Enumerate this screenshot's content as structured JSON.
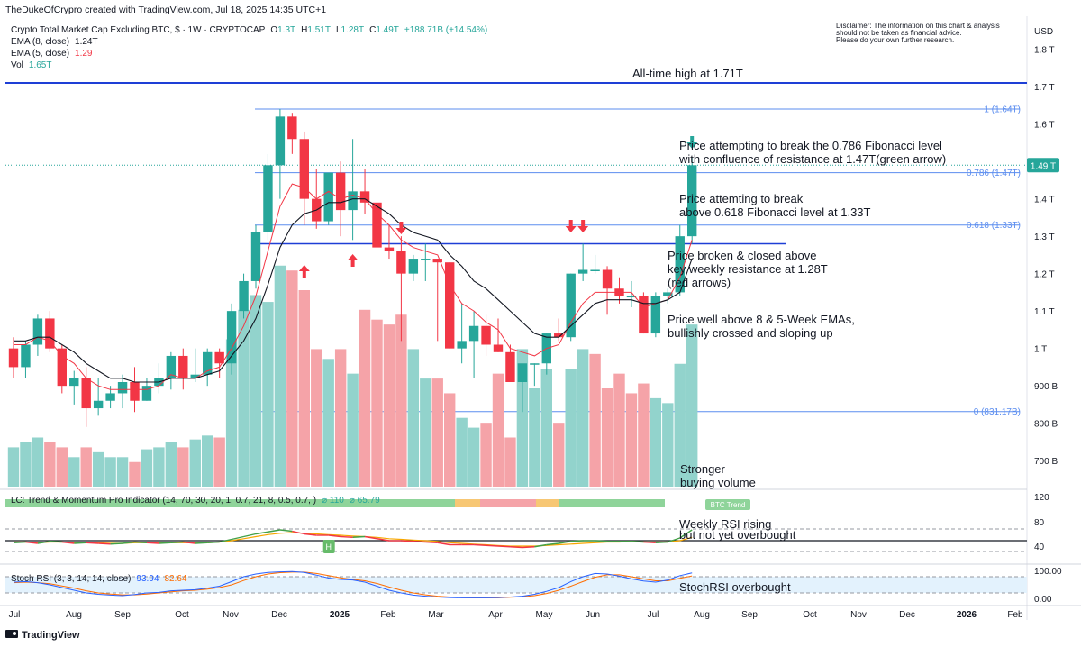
{
  "header": {
    "author_line": "TheDukeOfCrypro created with TradingView.com, Jul 18, 2025 14:35 UTC+1",
    "symbol_line": "Crypto Total Market Cap Excluding BTC, $ · 1W · CRYPTOCAP",
    "ohlc": {
      "o": "1.3T",
      "h": "1.51T",
      "l": "1.28T",
      "c": "1.49T",
      "chg": "+188.71B (+14.54%)"
    },
    "labels": {
      "o": "O",
      "h": "H",
      "l": "L",
      "c": "C"
    },
    "ema8": {
      "label": "EMA (8, close)",
      "value": "1.24T"
    },
    "ema5": {
      "label": "EMA (5, close)",
      "value": "1.29T"
    },
    "vol": {
      "label": "Vol",
      "value": "1.65T"
    },
    "disclaimer": [
      "Disclaimer: The information on this chart & analysis",
      "should not be taken as financial advice.",
      "Please do your own further research."
    ]
  },
  "colors": {
    "up": "#26a69a",
    "down": "#f23645",
    "ema8": "#131722",
    "ema5": "#f23645",
    "fib": "#5b8def",
    "hline": "#1e3fd6",
    "vol_up": "#92d3cc",
    "vol_down": "#f5a3a8"
  },
  "chart_data": {
    "type": "candlestick",
    "currency_label": "USD",
    "price_axis": [
      "1.8 T",
      "1.7 T",
      "1.6 T",
      "1.5 T",
      "1.4 T",
      "1.3 T",
      "1.2 T",
      "1.1 T",
      "1 T",
      "900 B",
      "800 B",
      "700 B"
    ],
    "time_axis": [
      "Jul",
      "Aug",
      "Sep",
      "Oct",
      "Nov",
      "Dec",
      "2025",
      "Feb",
      "Mar",
      "Apr",
      "May",
      "Jun",
      "Jul",
      "Aug",
      "Sep",
      "Oct",
      "Nov",
      "Dec",
      "2026",
      "Feb"
    ],
    "candles_ohlc": [
      [
        1.0,
        1.03,
        0.92,
        0.95
      ],
      [
        0.95,
        1.02,
        0.92,
        1.01
      ],
      [
        1.01,
        1.09,
        0.98,
        1.08
      ],
      [
        1.08,
        1.1,
        0.99,
        1.0
      ],
      [
        1.0,
        1.01,
        0.88,
        0.9
      ],
      [
        0.9,
        0.94,
        0.85,
        0.92
      ],
      [
        0.92,
        0.95,
        0.79,
        0.84
      ],
      [
        0.84,
        0.92,
        0.82,
        0.86
      ],
      [
        0.86,
        0.9,
        0.84,
        0.88
      ],
      [
        0.88,
        0.93,
        0.84,
        0.91
      ],
      [
        0.91,
        0.95,
        0.83,
        0.86
      ],
      [
        0.86,
        0.92,
        0.86,
        0.9
      ],
      [
        0.9,
        0.96,
        0.88,
        0.92
      ],
      [
        0.92,
        0.99,
        0.89,
        0.98
      ],
      [
        0.98,
        1.0,
        0.89,
        0.92
      ],
      [
        0.92,
        1.0,
        0.91,
        0.93
      ],
      [
        0.93,
        1.0,
        0.9,
        0.99
      ],
      [
        0.99,
        1.0,
        0.92,
        0.96
      ],
      [
        0.96,
        1.12,
        0.93,
        1.1
      ],
      [
        1.1,
        1.2,
        1.08,
        1.18
      ],
      [
        1.18,
        1.33,
        1.16,
        1.31
      ],
      [
        1.31,
        1.52,
        1.29,
        1.49
      ],
      [
        1.49,
        1.64,
        1.4,
        1.62
      ],
      [
        1.62,
        1.63,
        1.52,
        1.56
      ],
      [
        1.56,
        1.58,
        1.33,
        1.4
      ],
      [
        1.4,
        1.48,
        1.32,
        1.34
      ],
      [
        1.34,
        1.45,
        1.33,
        1.47
      ],
      [
        1.47,
        1.5,
        1.3,
        1.37
      ],
      [
        1.37,
        1.56,
        1.29,
        1.42
      ],
      [
        1.42,
        1.48,
        1.36,
        1.39
      ],
      [
        1.39,
        1.41,
        1.27,
        1.27
      ],
      [
        1.27,
        1.33,
        1.24,
        1.26
      ],
      [
        1.26,
        1.3,
        1.02,
        1.2
      ],
      [
        1.2,
        1.25,
        1.18,
        1.24
      ],
      [
        1.24,
        1.28,
        1.18,
        1.24
      ],
      [
        1.24,
        1.24,
        1.02,
        1.23
      ],
      [
        1.23,
        1.23,
        1.0,
        1.0
      ],
      [
        1.0,
        1.12,
        0.96,
        1.02
      ],
      [
        1.02,
        1.1,
        0.92,
        1.06
      ],
      [
        1.06,
        1.09,
        0.98,
        1.01
      ],
      [
        1.01,
        1.08,
        0.99,
        0.99
      ],
      [
        0.99,
        1.01,
        0.91,
        0.91
      ],
      [
        0.91,
        0.94,
        0.83,
        0.96
      ],
      [
        0.96,
        0.96,
        0.9,
        0.96
      ],
      [
        0.96,
        1.04,
        0.93,
        1.04
      ],
      [
        1.04,
        1.08,
        1.02,
        1.03
      ],
      [
        1.03,
        1.2,
        1.02,
        1.2
      ],
      [
        1.2,
        1.28,
        1.18,
        1.21
      ],
      [
        1.21,
        1.25,
        1.2,
        1.21
      ],
      [
        1.21,
        1.22,
        1.09,
        1.16
      ],
      [
        1.16,
        1.19,
        1.12,
        1.14
      ],
      [
        1.14,
        1.18,
        1.11,
        1.14
      ],
      [
        1.14,
        1.15,
        1.04,
        1.04
      ],
      [
        1.04,
        1.15,
        1.03,
        1.14
      ],
      [
        1.14,
        1.16,
        1.12,
        1.15
      ],
      [
        1.15,
        1.33,
        1.14,
        1.3
      ],
      [
        1.3,
        1.51,
        1.28,
        1.49
      ]
    ],
    "ema8_line": [
      1.02,
      1.02,
      1.03,
      1.03,
      1.01,
      0.99,
      0.96,
      0.94,
      0.92,
      0.92,
      0.91,
      0.91,
      0.91,
      0.92,
      0.92,
      0.92,
      0.93,
      0.94,
      0.98,
      1.02,
      1.08,
      1.17,
      1.27,
      1.33,
      1.36,
      1.37,
      1.39,
      1.39,
      1.4,
      1.4,
      1.38,
      1.36,
      1.33,
      1.31,
      1.3,
      1.29,
      1.25,
      1.22,
      1.18,
      1.16,
      1.13,
      1.1,
      1.07,
      1.04,
      1.03,
      1.03,
      1.06,
      1.09,
      1.12,
      1.13,
      1.13,
      1.13,
      1.12,
      1.12,
      1.13,
      1.15,
      1.24
    ],
    "ema5_line": [
      1.01,
      1.01,
      1.03,
      1.02,
      0.98,
      0.96,
      0.92,
      0.9,
      0.89,
      0.89,
      0.89,
      0.89,
      0.9,
      0.93,
      0.92,
      0.92,
      0.94,
      0.95,
      1.0,
      1.06,
      1.14,
      1.26,
      1.38,
      1.44,
      1.43,
      1.4,
      1.42,
      1.4,
      1.41,
      1.4,
      1.36,
      1.33,
      1.29,
      1.27,
      1.26,
      1.25,
      1.17,
      1.12,
      1.1,
      1.07,
      1.05,
      1.0,
      0.99,
      0.98,
      1.0,
      1.01,
      1.07,
      1.12,
      1.15,
      1.15,
      1.15,
      1.15,
      1.11,
      1.12,
      1.13,
      1.19,
      1.29
    ],
    "volume_billions": [
      690,
      695,
      700,
      695,
      690,
      680,
      690,
      685,
      680,
      680,
      675,
      688,
      690,
      695,
      690,
      698,
      702,
      700,
      800,
      830,
      845,
      838,
      875,
      870,
      850,
      790,
      780,
      790,
      765,
      830,
      820,
      815,
      825,
      790,
      760,
      760,
      745,
      720,
      710,
      715,
      765,
      700,
      790,
      750,
      770,
      715,
      770,
      790,
      785,
      750,
      765,
      745,
      755,
      740,
      735,
      775,
      815
    ],
    "volume_up": [
      true,
      true,
      true,
      false,
      false,
      true,
      false,
      true,
      true,
      true,
      false,
      true,
      true,
      true,
      false,
      true,
      true,
      false,
      true,
      true,
      true,
      true,
      true,
      false,
      false,
      false,
      true,
      false,
      true,
      false,
      false,
      false,
      false,
      true,
      true,
      false,
      false,
      true,
      true,
      false,
      false,
      false,
      true,
      true,
      true,
      false,
      true,
      true,
      false,
      false,
      false,
      false,
      false,
      true,
      true,
      true,
      true
    ],
    "levels": {
      "ath": {
        "value": 1.71,
        "label": "All-time high at 1.71T"
      },
      "fib_1": {
        "value": 1.64,
        "label": "1 (1.64T)"
      },
      "fib_786": {
        "value": 1.47,
        "label": "0.786 (1.47T)"
      },
      "fib_618": {
        "value": 1.33,
        "label": "0.618 (1.33T)"
      },
      "resistance": {
        "value": 1.28
      },
      "fib_0": {
        "value": 0.83117,
        "label": "0 (831.17B)"
      },
      "last_price": {
        "value": 1.49,
        "label": "1.49 T"
      }
    },
    "annotations": {
      "note1": [
        "Price attempting to break the 0.786 Fibonacci level",
        "with confluence of resistance at 1.47T(green arrow)"
      ],
      "note2": [
        "Price attemting to break",
        "above 0.618 Fibonacci level at 1.33T"
      ],
      "note3": [
        "Price broken & closed above",
        "key weekly resistance at 1.28T",
        "(red arrows)"
      ],
      "note4": [
        "Price well above 8 & 5-Week EMAs,",
        "bullishly crossed and sloping up"
      ],
      "note_volume": [
        "Stronger",
        "buying volume"
      ]
    },
    "indicator_lc": {
      "label": "LC: Trend & Momentum Pro Indicator (14, 70, 30, 20, 1, 0.7, 21, 8, 0.5, 0.7, )",
      "v1": "110",
      "v2": "65.79",
      "badge": "BTC Trend",
      "sep": "⌀"
    },
    "rsi": {
      "axis": [
        "120",
        "80",
        "40"
      ],
      "values": [
        47,
        48,
        46,
        49,
        48,
        46,
        47,
        46,
        45,
        46,
        48,
        47,
        46,
        47,
        48,
        46,
        47,
        48,
        52,
        56,
        60,
        63,
        66,
        64,
        60,
        58,
        58,
        56,
        55,
        56,
        53,
        50,
        50,
        49,
        48,
        47,
        44,
        44,
        44,
        43,
        42,
        41,
        40,
        41,
        44,
        46,
        49,
        50,
        50,
        49,
        49,
        49,
        48,
        47,
        48,
        54,
        66
      ],
      "signal": [
        48,
        48,
        47,
        48,
        48,
        47,
        47,
        47,
        46,
        46,
        47,
        47,
        47,
        47,
        47,
        47,
        47,
        48,
        50,
        53,
        56,
        59,
        61,
        62,
        61,
        60,
        59,
        58,
        57,
        56,
        55,
        53,
        52,
        51,
        50,
        49,
        47,
        46,
        45,
        44,
        43,
        42,
        42,
        42,
        43,
        44,
        45,
        46,
        47,
        48,
        48,
        49,
        48,
        48,
        48,
        50,
        55
      ],
      "zone": [
        false,
        false,
        false,
        false,
        false,
        false,
        false,
        false,
        false,
        false,
        false,
        false,
        false,
        false,
        false,
        false,
        false,
        false,
        false,
        false,
        false,
        false,
        false,
        false,
        false,
        false,
        false,
        false,
        false,
        false,
        false,
        false,
        true,
        true,
        true,
        true,
        true,
        true,
        true,
        true,
        true,
        true,
        true,
        true,
        true,
        true,
        true,
        true,
        true,
        true,
        false,
        false,
        false,
        false,
        false,
        false,
        false
      ],
      "marker": "H",
      "note": [
        "Weekly RSI rising",
        "but not yet overbought"
      ]
    },
    "stoch_rsi": {
      "label": "Stoch RSI (3, 3, 14, 14, close)",
      "k_value": "93.94",
      "d_value": "82.64",
      "axis": [
        "100.00",
        "0.00"
      ],
      "k": [
        60,
        62,
        58,
        50,
        40,
        30,
        20,
        15,
        12,
        10,
        14,
        20,
        22,
        28,
        30,
        32,
        38,
        45,
        62,
        80,
        90,
        96,
        98,
        99,
        96,
        86,
        75,
        70,
        68,
        60,
        45,
        30,
        20,
        12,
        8,
        5,
        3,
        2,
        2,
        2,
        3,
        5,
        8,
        15,
        26,
        40,
        62,
        80,
        92,
        90,
        82,
        72,
        64,
        60,
        68,
        84,
        94
      ],
      "d": [
        58,
        60,
        58,
        54,
        46,
        38,
        28,
        20,
        16,
        13,
        13,
        16,
        20,
        24,
        28,
        30,
        34,
        40,
        50,
        66,
        80,
        90,
        95,
        97,
        97,
        92,
        84,
        76,
        70,
        65,
        55,
        42,
        30,
        20,
        13,
        8,
        5,
        3,
        2,
        2,
        2,
        4,
        6,
        10,
        18,
        30,
        45,
        62,
        78,
        87,
        87,
        80,
        72,
        65,
        65,
        74,
        83
      ],
      "note": "StochRSI overbought"
    }
  },
  "footer": {
    "brand": "TradingView"
  }
}
